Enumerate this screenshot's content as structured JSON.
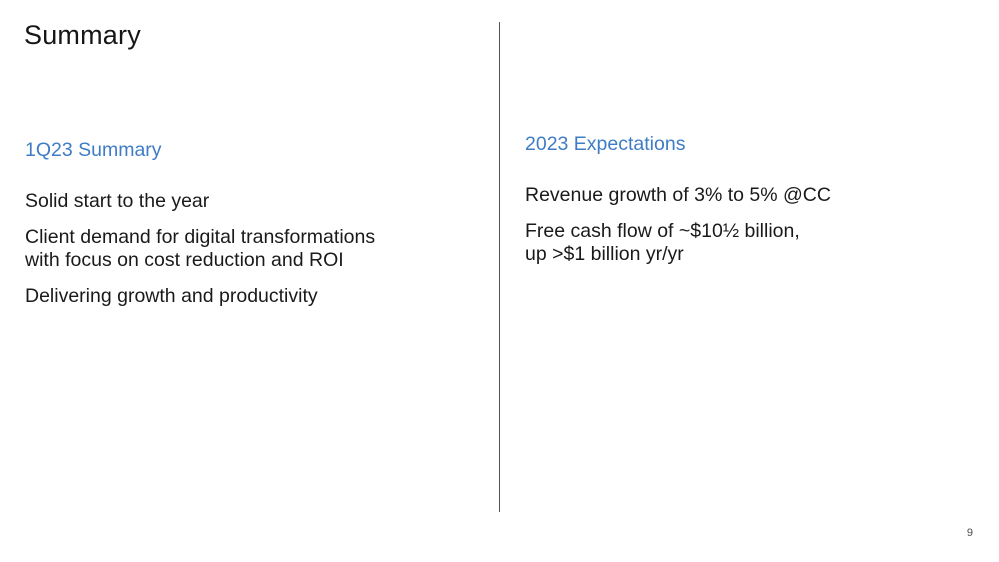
{
  "slide": {
    "title": "Summary",
    "page_number": "9"
  },
  "left_column": {
    "heading": "1Q23 Summary",
    "items": [
      "Solid start to the year",
      "Client demand for digital transformations\nwith focus on cost reduction and ROI",
      "Delivering growth and productivity"
    ]
  },
  "right_column": {
    "heading": "2023 Expectations",
    "items": [
      "Revenue growth of 3% to 5% @CC",
      "Free cash flow of ~$10½ billion,\nup >$1 billion yr/yr"
    ]
  },
  "colors": {
    "heading_accent": "#3f7cc6",
    "text": "#1a1a1a",
    "divider": "#525252"
  }
}
